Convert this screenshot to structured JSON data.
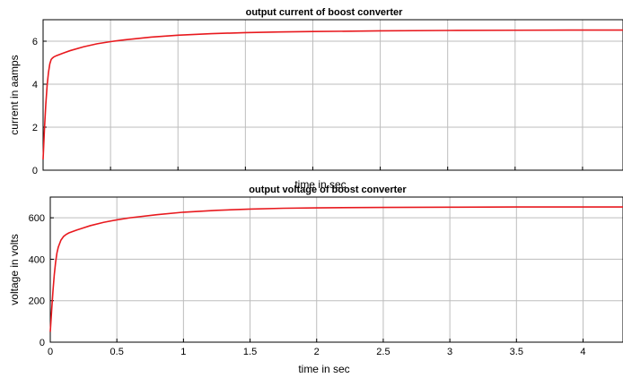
{
  "chart_data": [
    {
      "type": "line",
      "title": "output current of boost converter",
      "xlabel": "time in sec",
      "ylabel": "current in aamps",
      "xlim": [
        0,
        4.3
      ],
      "ylim": [
        0,
        7
      ],
      "xticks": [
        0,
        0.5,
        1,
        1.5,
        2,
        2.5,
        3,
        3.5,
        4
      ],
      "xtick_labels_shown": false,
      "yticks": [
        0,
        2,
        4,
        6
      ],
      "grid": true,
      "color": "#e8191e",
      "series": [
        {
          "x": [
            0,
            0.01,
            0.02,
            0.03,
            0.04,
            0.05,
            0.06,
            0.07,
            0.08,
            0.1,
            0.15,
            0.2,
            0.3,
            0.4,
            0.5,
            0.6,
            0.8,
            1.0,
            1.25,
            1.5,
            1.75,
            2.0,
            2.5,
            3.0,
            3.5,
            4.0,
            4.3
          ],
          "y": [
            0.5,
            1.9,
            3.05,
            3.95,
            4.55,
            4.95,
            5.15,
            5.22,
            5.27,
            5.33,
            5.45,
            5.56,
            5.74,
            5.88,
            5.98,
            6.06,
            6.19,
            6.28,
            6.35,
            6.4,
            6.43,
            6.45,
            6.48,
            6.5,
            6.51,
            6.52,
            6.52
          ]
        }
      ]
    },
    {
      "type": "line",
      "title": "output voltage of boost converter",
      "xlabel": "time in sec",
      "ylabel": "voltage in volts",
      "xlim": [
        0,
        4.3
      ],
      "ylim": [
        0,
        700
      ],
      "xticks": [
        0,
        0.5,
        1,
        1.5,
        2,
        2.5,
        3,
        3.5,
        4
      ],
      "xtick_labels": [
        "0",
        "0.5",
        "1",
        "1.5",
        "2",
        "2.5",
        "3",
        "3.5",
        "4"
      ],
      "yticks": [
        0,
        200,
        400,
        600
      ],
      "grid": true,
      "color": "#e8191e",
      "series": [
        {
          "x": [
            0,
            0.01,
            0.02,
            0.03,
            0.04,
            0.05,
            0.06,
            0.08,
            0.1,
            0.12,
            0.14,
            0.2,
            0.3,
            0.4,
            0.5,
            0.6,
            0.8,
            1.0,
            1.25,
            1.5,
            1.75,
            2.0,
            2.5,
            3.0,
            3.5,
            4.0,
            4.3
          ],
          "y": [
            50,
            150,
            245,
            325,
            385,
            430,
            458,
            492,
            510,
            520,
            527,
            541,
            562,
            578,
            590,
            600,
            615,
            627,
            636,
            642,
            646,
            648,
            650,
            651,
            652,
            652,
            652
          ]
        }
      ]
    }
  ]
}
